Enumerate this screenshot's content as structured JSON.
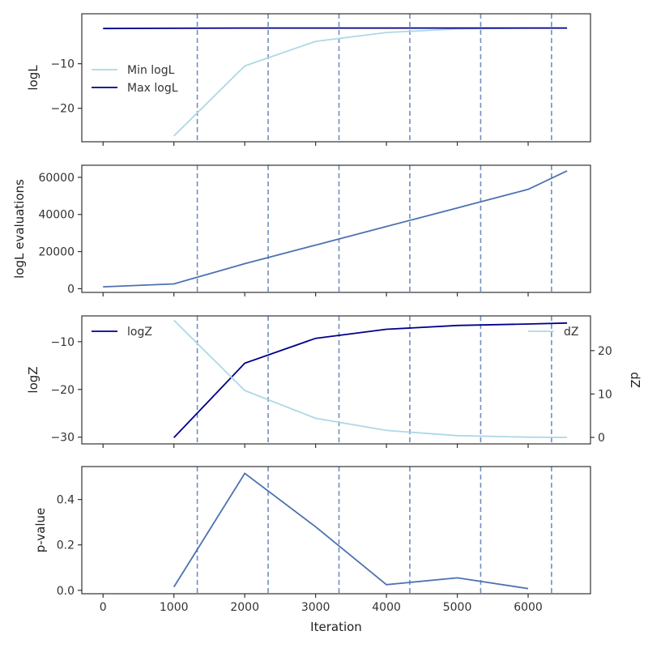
{
  "colors": {
    "light": "#add8e6",
    "dark": "#00008b",
    "mid": "#4c72b0",
    "vline": "#4c72b0",
    "axis": "#333333"
  },
  "chart_data": [
    {
      "type": "line",
      "ylabel": "logL",
      "xlim": [
        -300,
        6880
      ],
      "ylim": [
        -27.5,
        1.2
      ],
      "yticks": [
        -10,
        -20
      ],
      "ytick_labels": [
        "−10",
        "−20"
      ],
      "legend": "upper-left",
      "vlines": [
        1330,
        2330,
        3330,
        4330,
        5330,
        6330
      ],
      "series": [
        {
          "name": "Min logL",
          "color_key": "light",
          "x": [
            1000,
            2000,
            3000,
            4000,
            5000,
            6000,
            6550
          ],
          "y": [
            -26.2,
            -10.5,
            -5.0,
            -3.0,
            -2.2,
            -2.0,
            -2.0
          ]
        },
        {
          "name": "Max logL",
          "color_key": "dark",
          "x": [
            0,
            1000,
            2000,
            3000,
            4000,
            5000,
            6000,
            6550
          ],
          "y": [
            -2.1,
            -2.05,
            -2.0,
            -2.0,
            -2.0,
            -2.0,
            -2.0,
            -2.0
          ]
        }
      ]
    },
    {
      "type": "line",
      "ylabel": "logL evaluations",
      "xlim": [
        -300,
        6880
      ],
      "ylim": [
        -2000,
        66500
      ],
      "yticks": [
        0,
        20000,
        40000,
        60000
      ],
      "ytick_labels": [
        "0",
        "20000",
        "40000",
        "60000"
      ],
      "vlines": [
        1330,
        2330,
        3330,
        4330,
        5330,
        6330
      ],
      "series": [
        {
          "color_key": "mid",
          "x": [
            0,
            1000,
            2000,
            3000,
            4000,
            5000,
            6000,
            6550
          ],
          "y": [
            1000,
            2600,
            13500,
            23500,
            33500,
            43500,
            53500,
            63500
          ]
        }
      ]
    },
    {
      "type": "line",
      "ylabel": "logZ",
      "ylabel_right": "dZ",
      "xlim": [
        -300,
        6880
      ],
      "ylim": [
        -31.4,
        -4.6
      ],
      "yticks": [
        -10,
        -20,
        -30
      ],
      "ytick_labels": [
        "−10",
        "−20",
        "−30"
      ],
      "ylim_right": [
        -1.5,
        28
      ],
      "yticks_right": [
        0,
        10,
        20
      ],
      "ytick_labels_right": [
        "0",
        "10",
        "20"
      ],
      "vlines": [
        1330,
        2330,
        3330,
        4330,
        5330,
        6330
      ],
      "series": [
        {
          "name": "logZ",
          "axis": "left",
          "legend": "upper-left",
          "color_key": "dark",
          "x": [
            1000,
            2000,
            3000,
            4000,
            5000,
            6000,
            6550
          ],
          "y": [
            -30.1,
            -14.5,
            -9.3,
            -7.4,
            -6.6,
            -6.3,
            -6.1
          ]
        },
        {
          "name": "dZ",
          "axis": "right",
          "legend": "upper-right",
          "color_key": "light",
          "x": [
            1000,
            2000,
            3000,
            4000,
            5000,
            6000,
            6550
          ],
          "y": [
            27.0,
            10.8,
            4.4,
            1.6,
            0.4,
            0.05,
            0.0
          ]
        }
      ]
    },
    {
      "type": "line",
      "ylabel": "p-value",
      "xlabel": "Iteration",
      "xlim": [
        -300,
        6880
      ],
      "ylim": [
        -0.015,
        0.545
      ],
      "yticks": [
        0.0,
        0.2,
        0.4
      ],
      "ytick_labels": [
        "0.0",
        "0.2",
        "0.4"
      ],
      "xticks": [
        0,
        1000,
        2000,
        3000,
        4000,
        5000,
        6000
      ],
      "xtick_labels": [
        "0",
        "1000",
        "2000",
        "3000",
        "4000",
        "5000",
        "6000"
      ],
      "vlines": [
        1330,
        2330,
        3330,
        4330,
        5330,
        6330
      ],
      "series": [
        {
          "color_key": "mid",
          "x": [
            1000,
            2000,
            3000,
            4000,
            5000,
            6000
          ],
          "y": [
            0.015,
            0.515,
            0.28,
            0.025,
            0.055,
            0.008
          ]
        }
      ]
    }
  ]
}
